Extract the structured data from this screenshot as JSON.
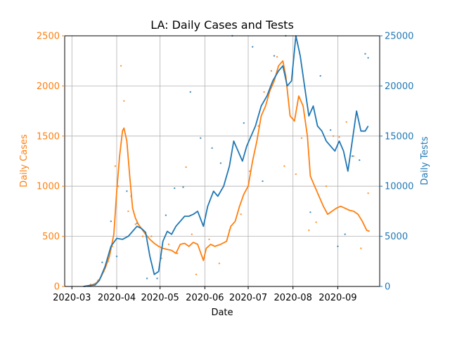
{
  "colors": {
    "cases": "#ff7f0e",
    "tests": "#1f77b4",
    "grid": "#b0b0b0",
    "axis": "#000000"
  },
  "chart_data": {
    "type": "line",
    "title": "LA: Daily Cases and Tests",
    "xlabel": "Date",
    "x_range": [
      "2020-02-25",
      "2020-09-30"
    ],
    "grid": true,
    "x_ticks": [
      "2020-03",
      "2020-04",
      "2020-05",
      "2020-06",
      "2020-07",
      "2020-08",
      "2020-09"
    ],
    "left_axis": {
      "label": "Daily Cases",
      "ylim": [
        0,
        2500
      ],
      "ticks": [
        0,
        500,
        1000,
        1500,
        2000,
        2500
      ]
    },
    "right_axis": {
      "label": "Daily Tests",
      "ylim": [
        0,
        25000
      ],
      "ticks": [
        0,
        5000,
        10000,
        15000,
        20000,
        25000
      ]
    },
    "series": [
      {
        "axis": "left",
        "kind": "smoothed-line",
        "points": [
          [
            "2020-03-09",
            0
          ],
          [
            "2020-03-12",
            5
          ],
          [
            "2020-03-15",
            15
          ],
          [
            "2020-03-18",
            35
          ],
          [
            "2020-03-21",
            90
          ],
          [
            "2020-03-24",
            180
          ],
          [
            "2020-03-27",
            300
          ],
          [
            "2020-03-30",
            520
          ],
          [
            "2020-04-01",
            950
          ],
          [
            "2020-04-03",
            1300
          ],
          [
            "2020-04-05",
            1550
          ],
          [
            "2020-04-06",
            1580
          ],
          [
            "2020-04-08",
            1450
          ],
          [
            "2020-04-10",
            1100
          ],
          [
            "2020-04-12",
            780
          ],
          [
            "2020-04-14",
            680
          ],
          [
            "2020-04-16",
            620
          ],
          [
            "2020-04-18",
            580
          ],
          [
            "2020-04-21",
            520
          ],
          [
            "2020-04-24",
            470
          ],
          [
            "2020-04-27",
            430
          ],
          [
            "2020-04-30",
            400
          ],
          [
            "2020-05-03",
            380
          ],
          [
            "2020-05-06",
            370
          ],
          [
            "2020-05-09",
            360
          ],
          [
            "2020-05-12",
            330
          ],
          [
            "2020-05-15",
            420
          ],
          [
            "2020-05-18",
            430
          ],
          [
            "2020-05-21",
            400
          ],
          [
            "2020-05-24",
            440
          ],
          [
            "2020-05-27",
            420
          ],
          [
            "2020-05-31",
            260
          ],
          [
            "2020-06-02",
            380
          ],
          [
            "2020-06-05",
            420
          ],
          [
            "2020-06-08",
            400
          ],
          [
            "2020-06-12",
            420
          ],
          [
            "2020-06-16",
            450
          ],
          [
            "2020-06-19",
            600
          ],
          [
            "2020-06-22",
            650
          ],
          [
            "2020-06-25",
            800
          ],
          [
            "2020-06-28",
            920
          ],
          [
            "2020-07-01",
            1000
          ],
          [
            "2020-07-04",
            1250
          ],
          [
            "2020-07-07",
            1450
          ],
          [
            "2020-07-10",
            1700
          ],
          [
            "2020-07-13",
            1800
          ],
          [
            "2020-07-16",
            1950
          ],
          [
            "2020-07-19",
            2050
          ],
          [
            "2020-07-22",
            2200
          ],
          [
            "2020-07-25",
            2250
          ],
          [
            "2020-07-27",
            2100
          ],
          [
            "2020-07-30",
            1700
          ],
          [
            "2020-08-02",
            1650
          ],
          [
            "2020-08-05",
            1900
          ],
          [
            "2020-08-08",
            1800
          ],
          [
            "2020-08-11",
            1500
          ],
          [
            "2020-08-13",
            1100
          ],
          [
            "2020-08-16",
            1000
          ],
          [
            "2020-08-19",
            900
          ],
          [
            "2020-08-22",
            800
          ],
          [
            "2020-08-25",
            720
          ],
          [
            "2020-08-28",
            750
          ],
          [
            "2020-08-31",
            780
          ],
          [
            "2020-09-03",
            800
          ],
          [
            "2020-09-06",
            780
          ],
          [
            "2020-09-09",
            760
          ],
          [
            "2020-09-12",
            750
          ],
          [
            "2020-09-15",
            720
          ],
          [
            "2020-09-18",
            650
          ],
          [
            "2020-09-21",
            560
          ],
          [
            "2020-09-23",
            550
          ]
        ]
      },
      {
        "axis": "right",
        "kind": "smoothed-line",
        "points": [
          [
            "2020-03-09",
            0
          ],
          [
            "2020-03-13",
            100
          ],
          [
            "2020-03-17",
            150
          ],
          [
            "2020-03-20",
            600
          ],
          [
            "2020-03-24",
            2000
          ],
          [
            "2020-03-28",
            4000
          ],
          [
            "2020-04-01",
            4800
          ],
          [
            "2020-04-05",
            4700
          ],
          [
            "2020-04-09",
            5000
          ],
          [
            "2020-04-12",
            5500
          ],
          [
            "2020-04-15",
            6000
          ],
          [
            "2020-04-18",
            5800
          ],
          [
            "2020-04-21",
            5400
          ],
          [
            "2020-04-24",
            3000
          ],
          [
            "2020-04-27",
            1200
          ],
          [
            "2020-04-30",
            1500
          ],
          [
            "2020-05-03",
            4500
          ],
          [
            "2020-05-06",
            5500
          ],
          [
            "2020-05-09",
            5200
          ],
          [
            "2020-05-12",
            6000
          ],
          [
            "2020-05-15",
            6500
          ],
          [
            "2020-05-18",
            7000
          ],
          [
            "2020-05-21",
            7000
          ],
          [
            "2020-05-24",
            7200
          ],
          [
            "2020-05-27",
            7500
          ],
          [
            "2020-05-31",
            6000
          ],
          [
            "2020-06-03",
            8000
          ],
          [
            "2020-06-07",
            9500
          ],
          [
            "2020-06-10",
            9000
          ],
          [
            "2020-06-14",
            10000
          ],
          [
            "2020-06-18",
            12000
          ],
          [
            "2020-06-21",
            14500
          ],
          [
            "2020-06-24",
            13500
          ],
          [
            "2020-06-27",
            12500
          ],
          [
            "2020-06-30",
            14000
          ],
          [
            "2020-07-03",
            15000
          ],
          [
            "2020-07-06",
            16000
          ],
          [
            "2020-07-10",
            18000
          ],
          [
            "2020-07-14",
            19000
          ],
          [
            "2020-07-18",
            20500
          ],
          [
            "2020-07-22",
            21500
          ],
          [
            "2020-07-25",
            22000
          ],
          [
            "2020-07-28",
            20000
          ],
          [
            "2020-07-31",
            20500
          ],
          [
            "2020-08-03",
            25000
          ],
          [
            "2020-08-06",
            23000
          ],
          [
            "2020-08-09",
            20000
          ],
          [
            "2020-08-12",
            17000
          ],
          [
            "2020-08-15",
            18000
          ],
          [
            "2020-08-18",
            16000
          ],
          [
            "2020-08-21",
            15500
          ],
          [
            "2020-08-24",
            14500
          ],
          [
            "2020-08-27",
            14000
          ],
          [
            "2020-08-30",
            13500
          ],
          [
            "2020-09-02",
            14500
          ],
          [
            "2020-09-05",
            13500
          ],
          [
            "2020-09-08",
            11500
          ],
          [
            "2020-09-11",
            14500
          ],
          [
            "2020-09-14",
            17500
          ],
          [
            "2020-09-17",
            15500
          ],
          [
            "2020-09-20",
            15500
          ],
          [
            "2020-09-22",
            16000
          ]
        ]
      },
      {
        "axis": "left",
        "kind": "scatter",
        "points": [
          [
            "2020-03-14",
            20
          ],
          [
            "2020-03-19",
            60
          ],
          [
            "2020-03-23",
            150
          ],
          [
            "2020-03-26",
            250
          ],
          [
            "2020-03-29",
            400
          ],
          [
            "2020-03-31",
            1200
          ],
          [
            "2020-04-02",
            1000
          ],
          [
            "2020-04-04",
            2200
          ],
          [
            "2020-04-06",
            1850
          ],
          [
            "2020-04-09",
            750
          ],
          [
            "2020-04-11",
            900
          ],
          [
            "2020-04-14",
            620
          ],
          [
            "2020-04-19",
            500
          ],
          [
            "2020-04-25",
            500
          ],
          [
            "2020-05-02",
            280
          ],
          [
            "2020-05-07",
            420
          ],
          [
            "2020-05-13",
            330
          ],
          [
            "2020-05-19",
            1190
          ],
          [
            "2020-05-23",
            520
          ],
          [
            "2020-05-26",
            120
          ],
          [
            "2020-06-04",
            470
          ],
          [
            "2020-06-11",
            230
          ],
          [
            "2020-06-18",
            560
          ],
          [
            "2020-06-26",
            720
          ],
          [
            "2020-07-02",
            1150
          ],
          [
            "2020-07-08",
            1600
          ],
          [
            "2020-07-12",
            1940
          ],
          [
            "2020-07-17",
            2150
          ],
          [
            "2020-07-21",
            2290
          ],
          [
            "2020-07-26",
            1200
          ],
          [
            "2020-08-03",
            1120
          ],
          [
            "2020-08-07",
            1480
          ],
          [
            "2020-08-12",
            560
          ],
          [
            "2020-08-17",
            640
          ],
          [
            "2020-08-24",
            1000
          ],
          [
            "2020-08-29",
            1500
          ],
          [
            "2020-09-02",
            1490
          ],
          [
            "2020-09-07",
            1640
          ],
          [
            "2020-09-12",
            1300
          ],
          [
            "2020-09-17",
            380
          ],
          [
            "2020-09-22",
            930
          ]
        ]
      },
      {
        "axis": "right",
        "kind": "scatter",
        "points": [
          [
            "2020-03-22",
            2400
          ],
          [
            "2020-03-28",
            6500
          ],
          [
            "2020-04-01",
            3000
          ],
          [
            "2020-04-08",
            9500
          ],
          [
            "2020-04-15",
            6300
          ],
          [
            "2020-04-22",
            800
          ],
          [
            "2020-04-29",
            800
          ],
          [
            "2020-05-05",
            7100
          ],
          [
            "2020-05-11",
            9800
          ],
          [
            "2020-05-17",
            9900
          ],
          [
            "2020-05-22",
            19400
          ],
          [
            "2020-05-29",
            14800
          ],
          [
            "2020-06-06",
            13800
          ],
          [
            "2020-06-12",
            12300
          ],
          [
            "2020-06-20",
            25000
          ],
          [
            "2020-06-28",
            16300
          ],
          [
            "2020-07-04",
            23900
          ],
          [
            "2020-07-11",
            10500
          ],
          [
            "2020-07-19",
            23000
          ],
          [
            "2020-07-27",
            25000
          ],
          [
            "2020-08-05",
            18800
          ],
          [
            "2020-08-13",
            7400
          ],
          [
            "2020-08-20",
            21000
          ],
          [
            "2020-08-27",
            15600
          ],
          [
            "2020-09-01",
            4000
          ],
          [
            "2020-09-06",
            5200
          ],
          [
            "2020-09-11",
            13000
          ],
          [
            "2020-09-16",
            12600
          ],
          [
            "2020-09-20",
            23200
          ],
          [
            "2020-09-22",
            22800
          ]
        ]
      }
    ]
  }
}
